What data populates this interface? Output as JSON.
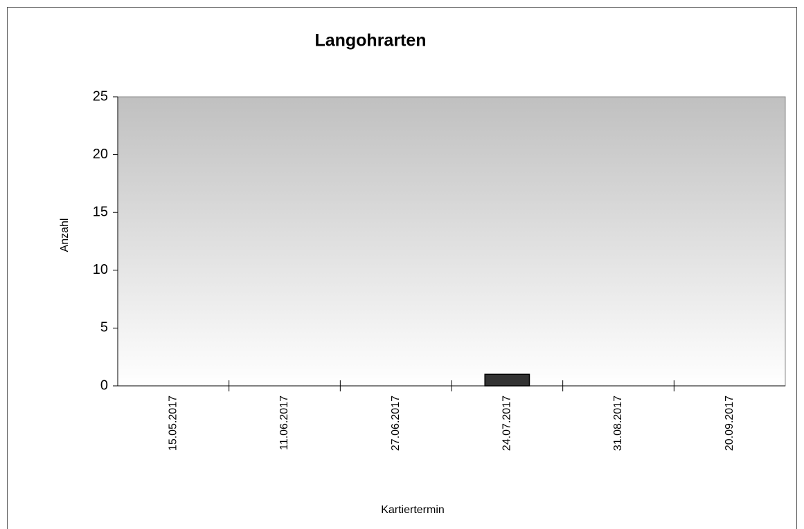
{
  "chart_data": {
    "type": "bar",
    "title": "Langohrarten",
    "x_label": "Kartiertermin",
    "y_label": "Anzahl",
    "categories": [
      "15.05.2017",
      "11.06.2017",
      "27.06.2017",
      "24.07.2017",
      "31.08.2017",
      "20.09.2017"
    ],
    "values": [
      0,
      0,
      0,
      1,
      0,
      0
    ],
    "color": "#333333",
    "ylim": [
      0,
      25
    ],
    "yticks": [
      0,
      5,
      10,
      15,
      20,
      25
    ]
  }
}
